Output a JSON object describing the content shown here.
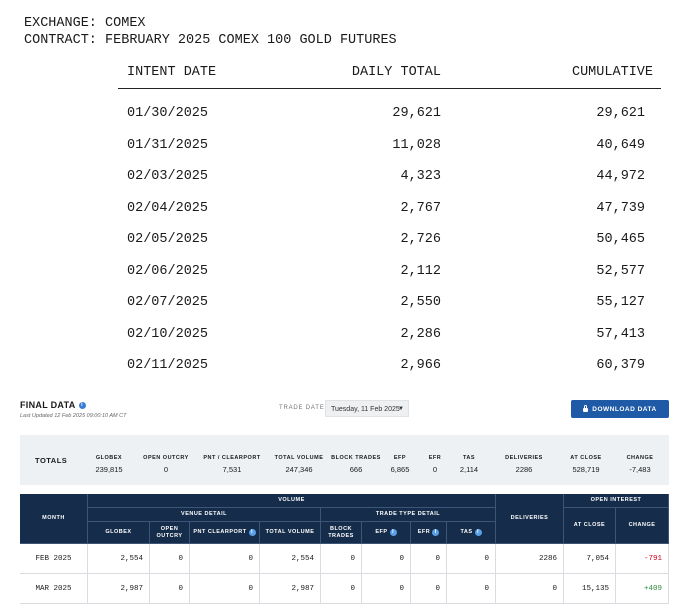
{
  "header": {
    "exchange_line": "EXCHANGE: COMEX",
    "contract_line": "CONTRACT: FEBRUARY 2025 COMEX 100 GOLD FUTURES"
  },
  "intent_table": {
    "columns": [
      "INTENT DATE",
      "DAILY TOTAL",
      "CUMULATIVE"
    ],
    "rows": [
      {
        "date": "01/30/2025",
        "daily": "29,621",
        "cumulative": "29,621"
      },
      {
        "date": "01/31/2025",
        "daily": "11,028",
        "cumulative": "40,649"
      },
      {
        "date": "02/03/2025",
        "daily": "4,323",
        "cumulative": "44,972"
      },
      {
        "date": "02/04/2025",
        "daily": "2,767",
        "cumulative": "47,739"
      },
      {
        "date": "02/05/2025",
        "daily": "2,726",
        "cumulative": "50,465"
      },
      {
        "date": "02/06/2025",
        "daily": "2,112",
        "cumulative": "52,577"
      },
      {
        "date": "02/07/2025",
        "daily": "2,550",
        "cumulative": "55,127"
      },
      {
        "date": "02/10/2025",
        "daily": "2,286",
        "cumulative": "57,413"
      },
      {
        "date": "02/11/2025",
        "daily": "2,966",
        "cumulative": "60,379"
      }
    ]
  },
  "final_data": {
    "title": "FINAL DATA",
    "last_updated": "Last Updated 12 Feb 2025 09:00:10 AM CT",
    "trade_date_label": "TRADE DATE",
    "trade_date_value": "Tuesday, 11 Feb 2025",
    "download_label": "DOWNLOAD DATA"
  },
  "totals": {
    "label": "TOTALS",
    "columns": [
      {
        "header": "GLOBEX",
        "value": "239,815"
      },
      {
        "header": "OPEN OUTCRY",
        "value": "0"
      },
      {
        "header": "PNT / CLEARPORT",
        "value": "7,531"
      },
      {
        "header": "TOTAL VOLUME",
        "value": "247,346"
      },
      {
        "header": "BLOCK TRADES",
        "value": "666"
      },
      {
        "header": "EFP",
        "value": "6,865"
      },
      {
        "header": "EFR",
        "value": "0"
      },
      {
        "header": "TAS",
        "value": "2,114"
      },
      {
        "header": "DELIVERIES",
        "value": "2286"
      },
      {
        "header": "AT CLOSE",
        "value": "528,719"
      },
      {
        "header": "CHANGE",
        "value": "-7,483"
      }
    ]
  },
  "volume_table": {
    "month_header": "MONTH",
    "volume_header": "VOLUME",
    "venue_detail_header": "VENUE DETAIL",
    "trade_type_header": "TRADE TYPE DETAIL",
    "deliveries_header": "DELIVERIES",
    "open_interest_header": "OPEN INTEREST",
    "sub_headers": {
      "globex": "GLOBEX",
      "open_outcry": "OPEN OUTCRY",
      "pnt": "PNT CLEARPORT",
      "total_volume": "TOTAL VOLUME",
      "block_trades": "BLOCK TRADES",
      "efp": "EFP",
      "efr": "EFR",
      "tas": "TAS",
      "at_close": "AT CLOSE",
      "change": "CHANGE"
    },
    "rows": [
      {
        "month": "FEB 2025",
        "globex": "2,554",
        "open_outcry": "0",
        "pnt": "0",
        "total_volume": "2,554",
        "block_trades": "0",
        "efp": "0",
        "efr": "0",
        "tas": "0",
        "deliveries": "2286",
        "at_close": "7,054",
        "change": "-791"
      },
      {
        "month": "MAR 2025",
        "globex": "2,987",
        "open_outcry": "0",
        "pnt": "0",
        "total_volume": "2,987",
        "block_trades": "0",
        "efp": "0",
        "efr": "0",
        "tas": "0",
        "deliveries": "0",
        "at_close": "15,135",
        "change": "+409"
      }
    ],
    "colors": {
      "header_bg": "#152c4a",
      "negative": "#d0021b",
      "positive": "#2e8b3d"
    }
  }
}
